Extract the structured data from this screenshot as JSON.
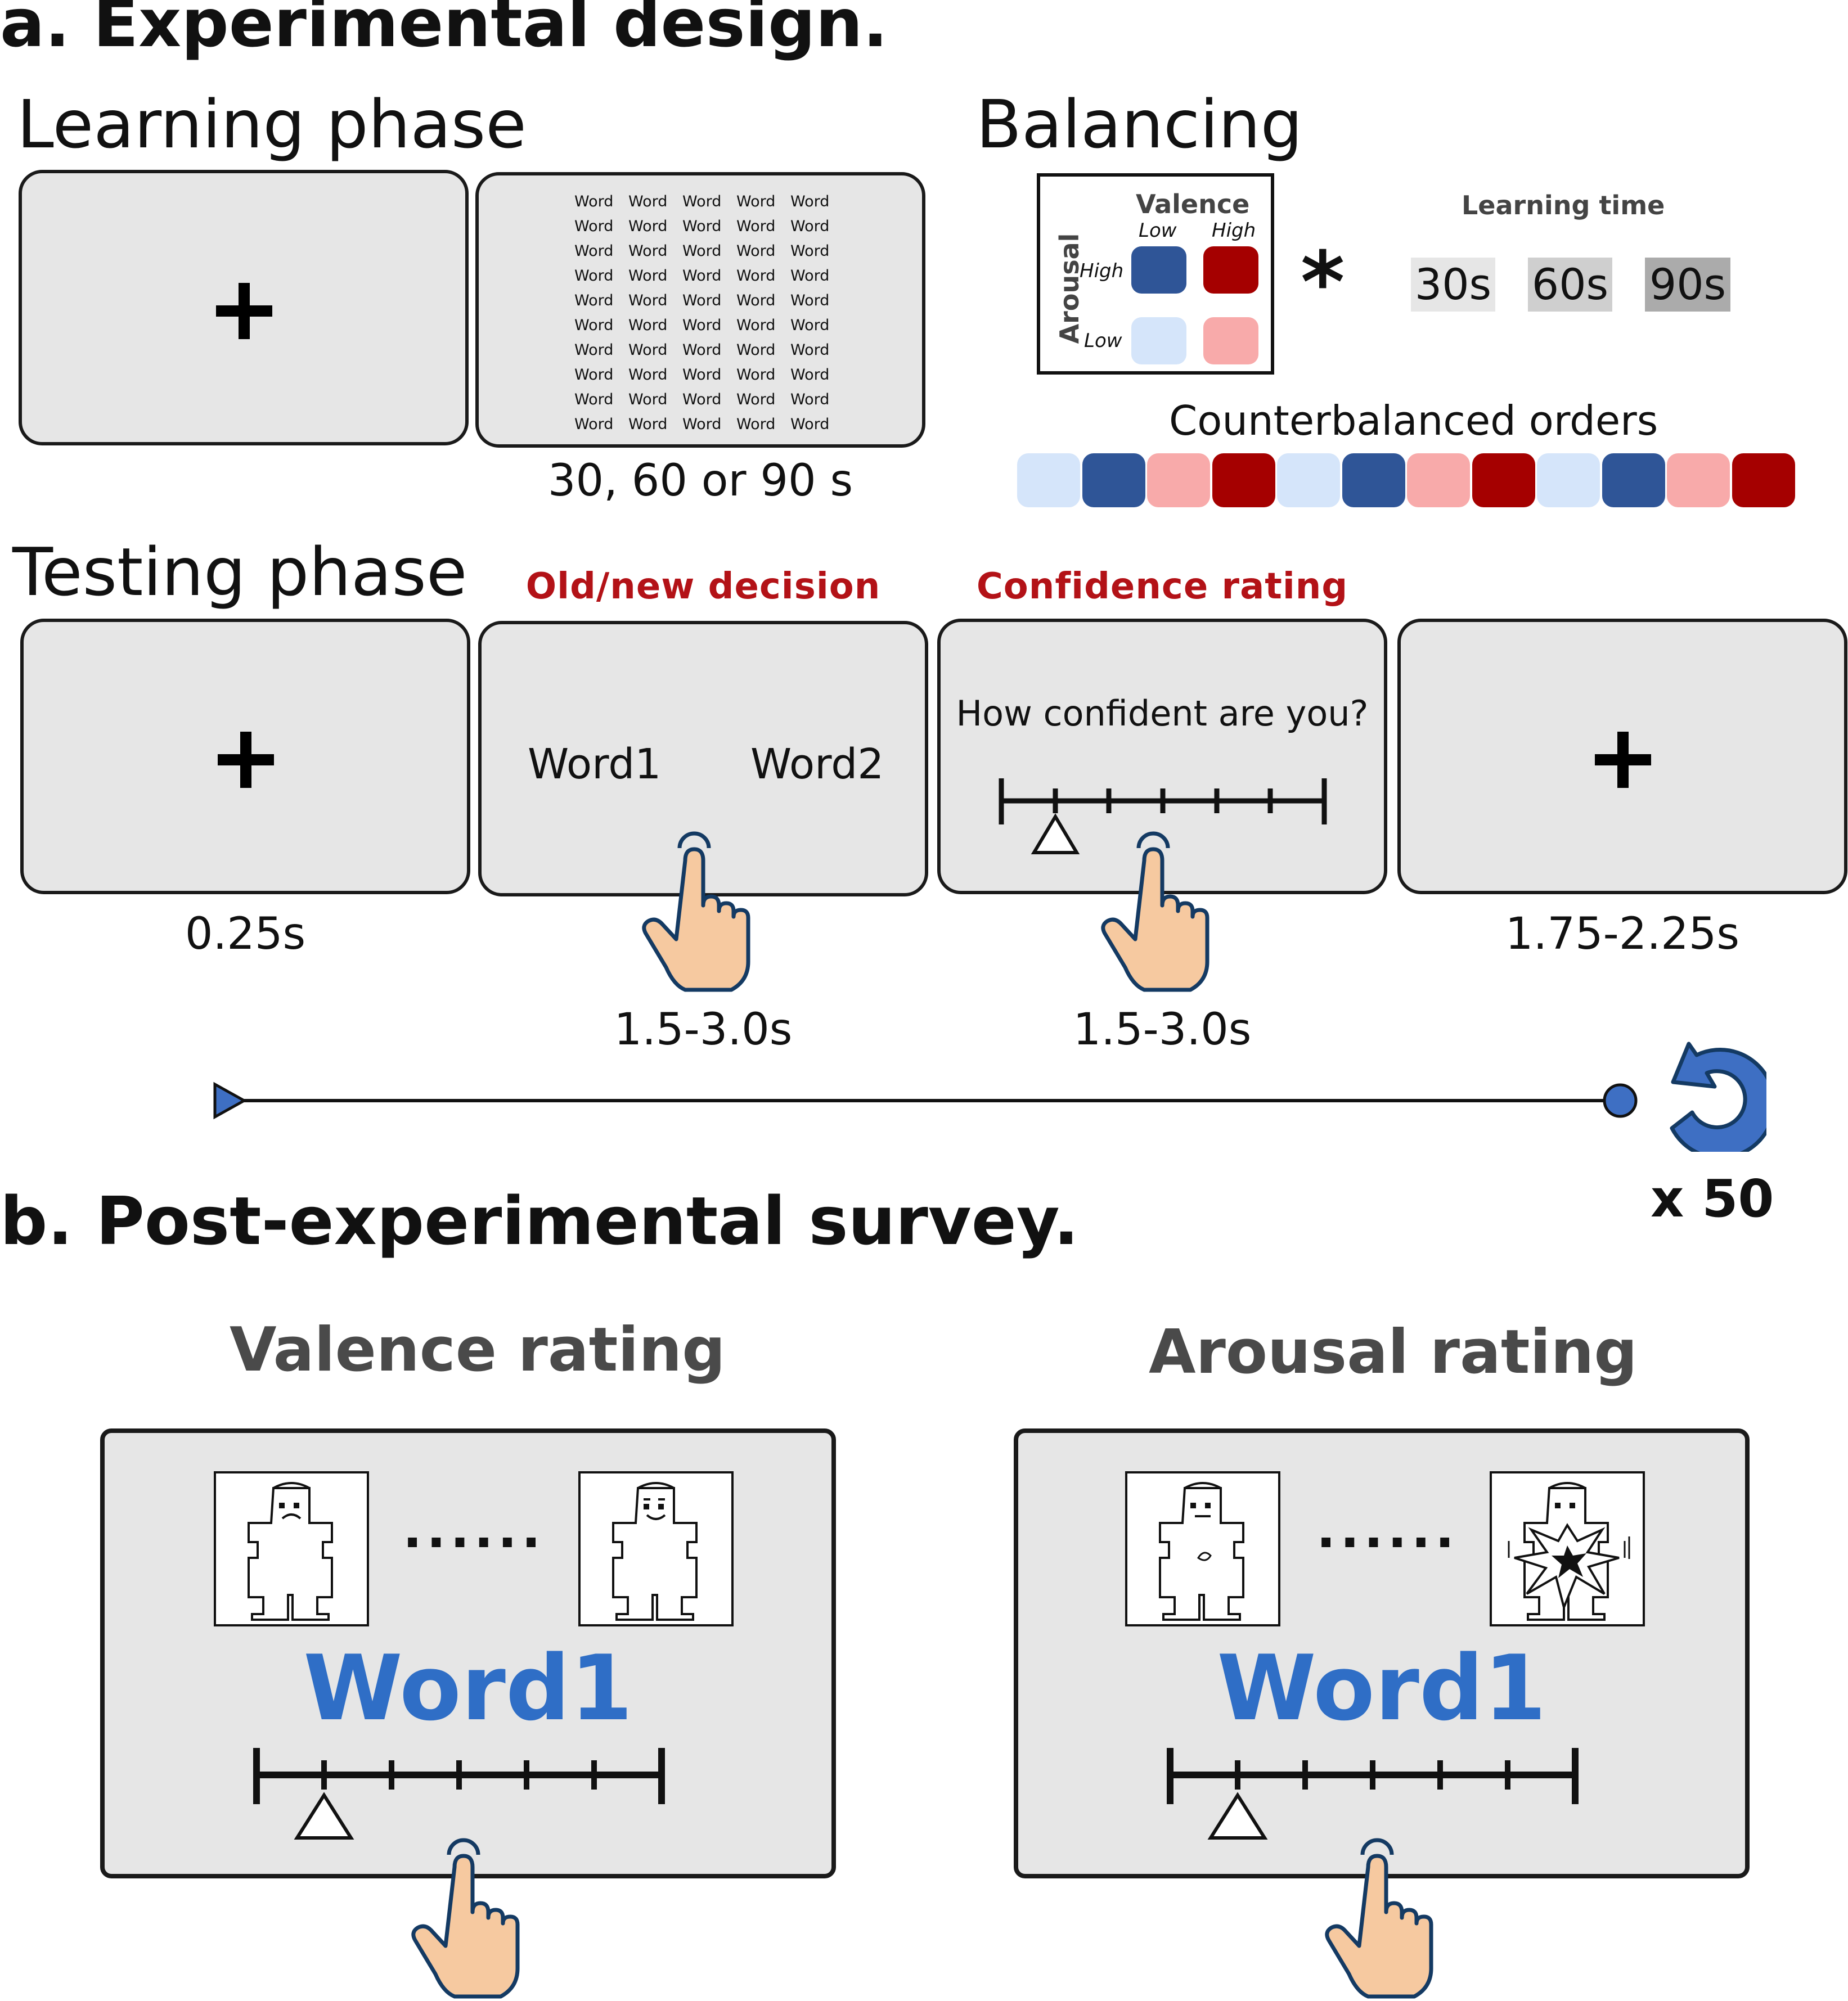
{
  "colors": {
    "high_arousal_low_valence": "#2f5597",
    "high_arousal_high_valence": "#a50000",
    "low_arousal_low_valence": "#d5e5fa",
    "low_arousal_high_valence": "#f8aaaa",
    "accent_red": "#b31217",
    "word_blue": "#2f6ec6",
    "hand_fill": "#f6c9a0",
    "hand_stroke": "#143a63"
  },
  "section_a": {
    "title": "a. Experimental design.",
    "learning_phase": {
      "title": "Learning phase",
      "word_grid": [
        "Word",
        "Word",
        "Word",
        "Word",
        "Word",
        "Word",
        "Word",
        "Word",
        "Word",
        "Word",
        "Word",
        "Word",
        "Word",
        "Word",
        "Word",
        "Word",
        "Word",
        "Word",
        "Word",
        "Word",
        "Word",
        "Word",
        "Word",
        "Word",
        "Word",
        "Word",
        "Word",
        "Word",
        "Word",
        "Word",
        "Word",
        "Word",
        "Word",
        "Word",
        "Word",
        "Word",
        "Word",
        "Word",
        "Word",
        "Word",
        "Word",
        "Word",
        "Word",
        "Word",
        "Word",
        "Word",
        "Word",
        "Word",
        "Word",
        "Word"
      ],
      "duration": "30, 60 or 90 s"
    },
    "balancing": {
      "title": "Balancing",
      "valence_label": "Valence",
      "valence_low": "Low",
      "valence_high": "High",
      "arousal_label": "Arousal",
      "arousal_high": "High",
      "arousal_low": "Low",
      "times_symbol": "*",
      "learning_time_label": "Learning time",
      "learning_times": [
        "30s",
        "60s",
        "90s"
      ],
      "counterbalanced_label": "Counterbalanced orders",
      "order_sequence": [
        "low-low",
        "high-low",
        "low-high",
        "high-high",
        "low-low",
        "high-low",
        "low-high",
        "high-high",
        "low-low",
        "high-low",
        "low-high",
        "high-high"
      ]
    },
    "testing_phase": {
      "title": "Testing phase",
      "old_new_title": "Old/new decision",
      "confidence_title": "Confidence rating",
      "word1": "Word1",
      "word2": "Word2",
      "confidence_question": "How confident are you?",
      "duration_fixation": "0.25s",
      "duration_decision": "1.5-3.0s",
      "duration_confidence": "1.5-3.0s",
      "duration_iti": "1.75-2.25s",
      "repeat_label": "x 50"
    }
  },
  "section_b": {
    "title": "b. Post-experimental survey.",
    "valence_rating_title": "Valence rating",
    "arousal_rating_title": "Arousal rating",
    "word": "Word1",
    "ellipsis": "......"
  }
}
